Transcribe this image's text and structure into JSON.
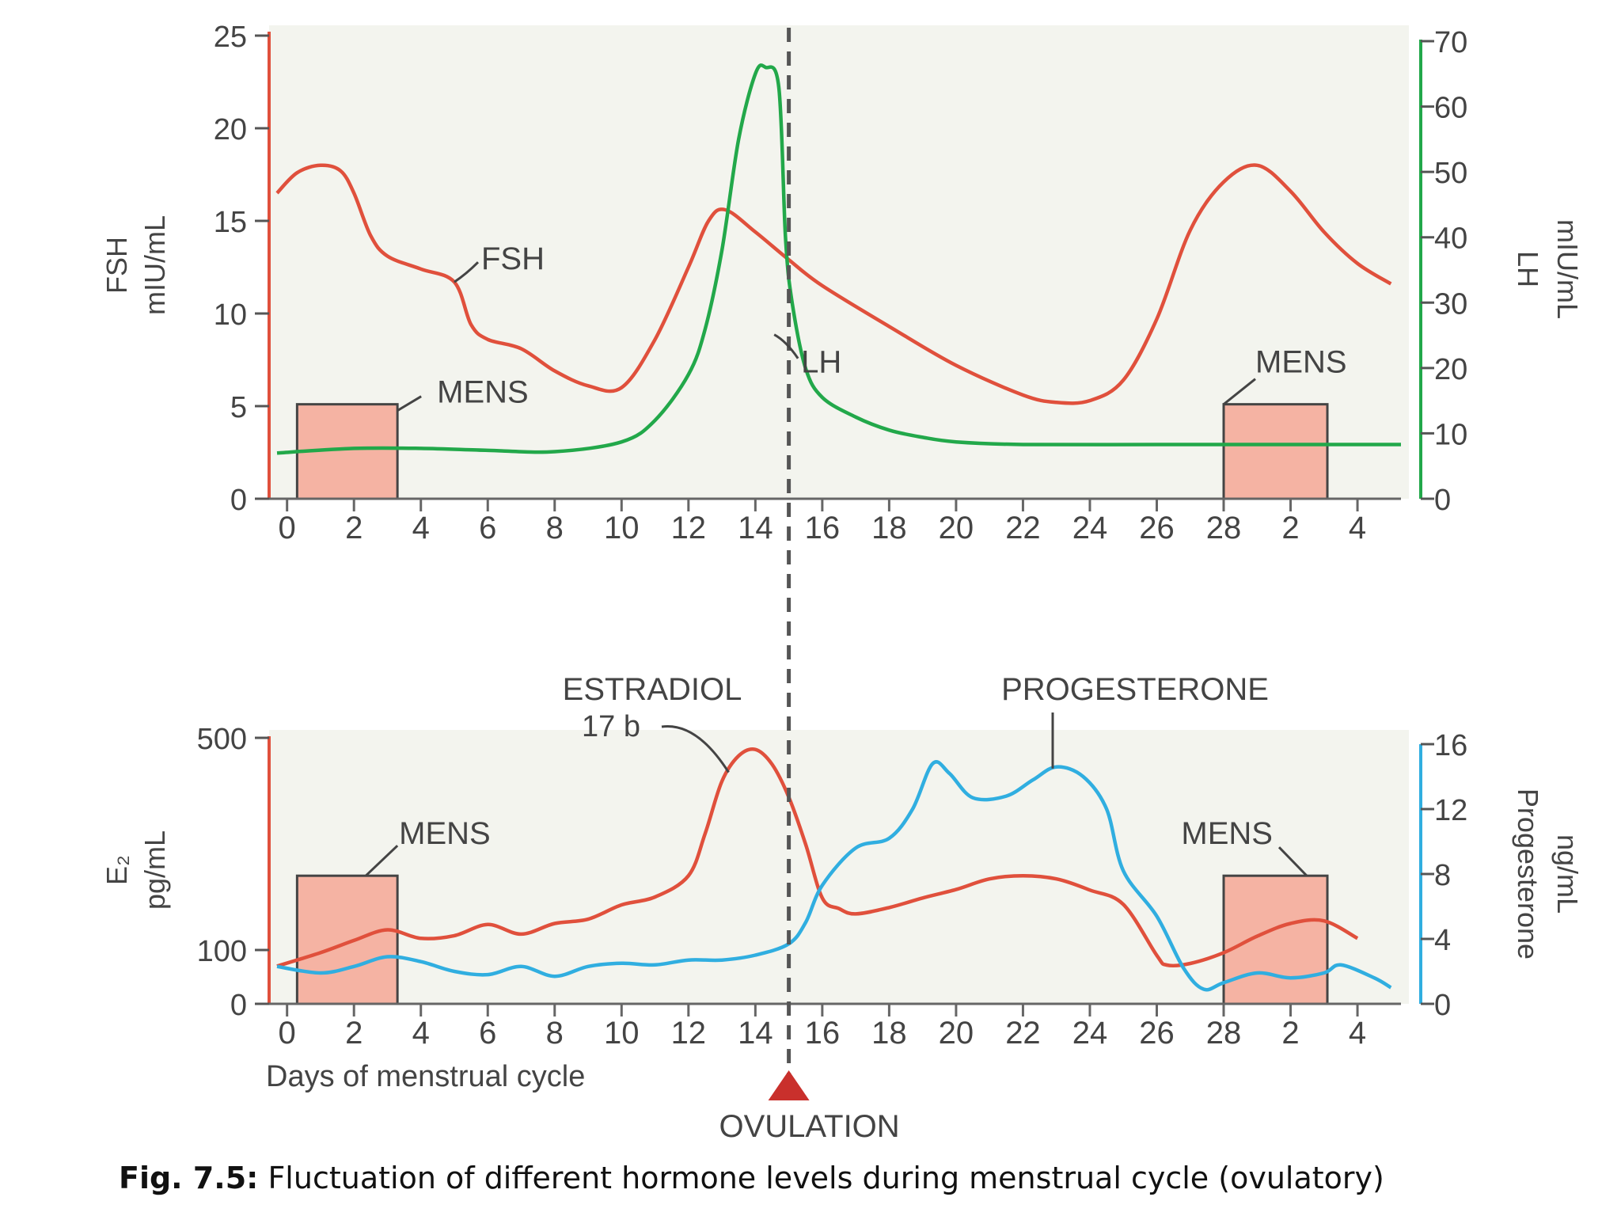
{
  "caption": {
    "label": "Fig. 7.5:",
    "text": " Fluctuation of different hormone levels during menstrual cycle (ovulatory)"
  },
  "ovulation_label": "OVULATION",
  "colors": {
    "fsh": "#e0503c",
    "lh": "#22a84a",
    "estradiol": "#e0503c",
    "progesterone": "#30aee0",
    "mens_fill": "#f5b3a3",
    "panel_bg": "#f3f4ee",
    "ovulation_marker": "#c9302c"
  },
  "chart_data": [
    {
      "type": "line",
      "x_tick_labels": [
        "0",
        "2",
        "4",
        "6",
        "8",
        "10",
        "12",
        "14",
        "16",
        "18",
        "20",
        "22",
        "24",
        "26",
        "28",
        "2",
        "4"
      ],
      "y_left": {
        "label_lines": [
          "FSH",
          "mIU/mL"
        ],
        "ticks": [
          "0",
          "5",
          "10",
          "15",
          "20",
          "25"
        ],
        "range": [
          0,
          25
        ]
      },
      "y_right": {
        "label_lines": [
          "LH",
          "mIU/mL"
        ],
        "ticks": [
          "0",
          "10",
          "20",
          "30",
          "40",
          "50",
          "60",
          "70"
        ],
        "range": [
          0,
          70
        ]
      },
      "series": [
        {
          "name": "FSH",
          "axis": "left",
          "points": [
            [
              -0.3,
              16.5
            ],
            [
              0.3,
              17.6
            ],
            [
              1,
              18
            ],
            [
              1.6,
              17.7
            ],
            [
              2,
              16.5
            ],
            [
              2.5,
              14.2
            ],
            [
              3,
              13.1
            ],
            [
              4,
              12.4
            ],
            [
              5,
              11.7
            ],
            [
              5.5,
              9.4
            ],
            [
              6,
              8.6
            ],
            [
              7,
              8.1
            ],
            [
              8,
              6.9
            ],
            [
              9,
              6.1
            ],
            [
              10,
              6.0
            ],
            [
              11,
              8.6
            ],
            [
              12,
              12.5
            ],
            [
              12.6,
              15
            ],
            [
              13.1,
              15.6
            ],
            [
              14,
              14.4
            ],
            [
              15,
              12.9
            ],
            [
              16,
              11.5
            ],
            [
              18,
              9.3
            ],
            [
              20,
              7.2
            ],
            [
              22,
              5.6
            ],
            [
              23,
              5.2
            ],
            [
              24,
              5.3
            ],
            [
              25,
              6.4
            ],
            [
              26,
              9.7
            ],
            [
              27,
              14.5
            ],
            [
              28,
              17.1
            ],
            [
              29,
              18
            ],
            [
              30,
              16.6
            ],
            [
              31,
              14.4
            ],
            [
              32,
              12.7
            ],
            [
              33,
              11.6
            ]
          ]
        },
        {
          "name": "LH",
          "axis": "right",
          "points": [
            [
              -0.3,
              7
            ],
            [
              2,
              7.7
            ],
            [
              4,
              7.7
            ],
            [
              6,
              7.4
            ],
            [
              8,
              7.2
            ],
            [
              10,
              8.7
            ],
            [
              11,
              12
            ],
            [
              12,
              19
            ],
            [
              12.5,
              26
            ],
            [
              13,
              38
            ],
            [
              13.5,
              55
            ],
            [
              14,
              65
            ],
            [
              14.3,
              66
            ],
            [
              14.7,
              63
            ],
            [
              14.9,
              40
            ],
            [
              15.1,
              30
            ],
            [
              15.5,
              20
            ],
            [
              16,
              15.5
            ],
            [
              17,
              12.5
            ],
            [
              18,
              10.5
            ],
            [
              19,
              9.4
            ],
            [
              20,
              8.7
            ],
            [
              22,
              8.3
            ],
            [
              26,
              8.3
            ],
            [
              30,
              8.3
            ],
            [
              33.3,
              8.3
            ]
          ]
        }
      ],
      "annotations": [
        {
          "text": "FSH",
          "pointer": [
            5,
            11.7
          ]
        },
        {
          "text": "LH",
          "pointer": [
            14.8,
            20.5
          ]
        },
        {
          "text": "MENS",
          "box_days": [
            0.3,
            3.3
          ],
          "box_height": 5.1
        },
        {
          "text": "MENS",
          "box_days": [
            28,
            31.1
          ],
          "box_height": 5.1
        }
      ]
    },
    {
      "type": "line",
      "x_tick_labels": [
        "0",
        "2",
        "4",
        "6",
        "8",
        "10",
        "12",
        "14",
        "16",
        "18",
        "20",
        "22",
        "24",
        "26",
        "28",
        "2",
        "4"
      ],
      "xlabel": "Days of menstrual cycle",
      "y_left": {
        "label_lines": [
          "E₂",
          "pg/mL"
        ],
        "ticks": [
          "0",
          "100",
          "500"
        ],
        "range": [
          0,
          500
        ]
      },
      "y_right": {
        "label_lines": [
          "Progesterone",
          "ng/mL"
        ],
        "ticks": [
          "0",
          "4",
          "8",
          "12",
          "16"
        ],
        "range": [
          0,
          16
        ]
      },
      "series": [
        {
          "name": "ESTRADIOL 17 b",
          "axis": "left",
          "points": [
            [
              -0.3,
              70
            ],
            [
              1,
              95
            ],
            [
              2,
              118
            ],
            [
              3,
              138
            ],
            [
              4,
              122
            ],
            [
              5,
              127
            ],
            [
              6,
              148
            ],
            [
              7,
              130
            ],
            [
              8,
              150
            ],
            [
              9,
              158
            ],
            [
              10,
              185
            ],
            [
              11,
              200
            ],
            [
              12,
              240
            ],
            [
              12.5,
              320
            ],
            [
              13,
              418
            ],
            [
              13.5,
              466
            ],
            [
              14,
              478
            ],
            [
              14.5,
              450
            ],
            [
              15,
              388
            ],
            [
              15.5,
              300
            ],
            [
              16,
              198
            ],
            [
              16.5,
              178
            ],
            [
              17,
              168
            ],
            [
              18,
              180
            ],
            [
              19,
              198
            ],
            [
              20,
              214
            ],
            [
              21,
              234
            ],
            [
              22,
              240
            ],
            [
              23,
              234
            ],
            [
              24,
              213
            ],
            [
              25,
              186
            ],
            [
              26,
              90
            ],
            [
              26.3,
              72
            ],
            [
              27,
              75
            ],
            [
              28,
              95
            ],
            [
              29,
              126
            ],
            [
              30,
              150
            ],
            [
              31,
              155
            ],
            [
              32,
              122
            ]
          ]
        },
        {
          "name": "PROGESTERONE",
          "axis": "right",
          "points": [
            [
              -0.3,
              2.3
            ],
            [
              1,
              1.9
            ],
            [
              2,
              2.3
            ],
            [
              3,
              2.9
            ],
            [
              4,
              2.6
            ],
            [
              5,
              2.0
            ],
            [
              6,
              1.8
            ],
            [
              7,
              2.3
            ],
            [
              8,
              1.7
            ],
            [
              9,
              2.3
            ],
            [
              10,
              2.5
            ],
            [
              11,
              2.4
            ],
            [
              12,
              2.7
            ],
            [
              13,
              2.7
            ],
            [
              14,
              3.0
            ],
            [
              15,
              3.7
            ],
            [
              15.5,
              5
            ],
            [
              16,
              7.3
            ],
            [
              17,
              9.6
            ],
            [
              18,
              10.2
            ],
            [
              18.7,
              12
            ],
            [
              19.3,
              14.8
            ],
            [
              19.8,
              14.2
            ],
            [
              20.5,
              12.7
            ],
            [
              21.5,
              12.8
            ],
            [
              22.3,
              13.8
            ],
            [
              23,
              14.6
            ],
            [
              23.8,
              14
            ],
            [
              24.5,
              12
            ],
            [
              25,
              8.2
            ],
            [
              26,
              5.4
            ],
            [
              26.8,
              2.2
            ],
            [
              27.4,
              0.9
            ],
            [
              28,
              1.3
            ],
            [
              29,
              1.9
            ],
            [
              30,
              1.6
            ],
            [
              31,
              1.9
            ],
            [
              31.5,
              2.4
            ],
            [
              32.5,
              1.6
            ],
            [
              33,
              1.0
            ]
          ]
        }
      ],
      "annotations": [
        {
          "text": "ESTRADIOL",
          "sub": "17 b",
          "pointer": [
            13.2,
            435
          ]
        },
        {
          "text": "PROGESTERONE",
          "pointer": [
            22.5,
            14.5
          ]
        },
        {
          "text": "MENS",
          "box_days": [
            0.3,
            3.3
          ],
          "box_height": 240
        },
        {
          "text": "MENS",
          "box_days": [
            28,
            31.1
          ],
          "box_height": 240
        }
      ]
    }
  ]
}
